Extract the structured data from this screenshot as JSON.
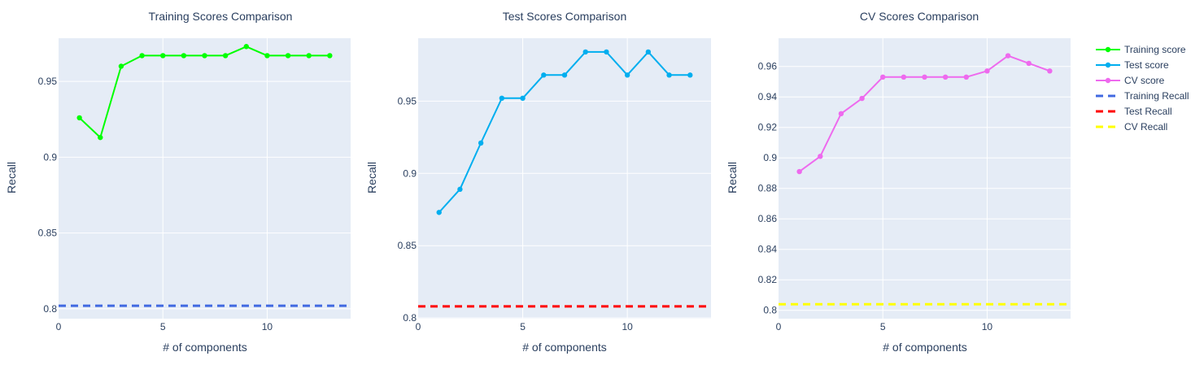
{
  "chart_data": [
    {
      "type": "line",
      "title": "Training Scores Comparison",
      "xlabel": "# of components",
      "ylabel": "Recall",
      "xlim": [
        0,
        14
      ],
      "ylim": [
        0.7935,
        0.9785
      ],
      "x_ticks": [
        0,
        5,
        10
      ],
      "x_tick_labels": [
        "0",
        "5",
        "10"
      ],
      "y_ticks": [
        0.8,
        0.85,
        0.9,
        0.95
      ],
      "y_tick_labels": [
        "0.8",
        "0.85",
        "0.9",
        "0.95"
      ],
      "grid": true,
      "series": [
        {
          "name": "Training score",
          "kind": "line+markers",
          "color": "#00ff00",
          "x": [
            1,
            2,
            3,
            4,
            5,
            6,
            7,
            8,
            9,
            10,
            11,
            12,
            13
          ],
          "y": [
            0.926,
            0.913,
            0.96,
            0.967,
            0.967,
            0.967,
            0.967,
            0.967,
            0.973,
            0.967,
            0.967,
            0.967,
            0.967
          ]
        },
        {
          "name": "Training Recall",
          "kind": "hline-dashed",
          "color": "#4169e1",
          "y": 0.802
        }
      ]
    },
    {
      "type": "line",
      "title": "Test Scores Comparison",
      "xlabel": "# of components",
      "ylabel": "Recall",
      "xlim": [
        0,
        14
      ],
      "ylim": [
        0.7995,
        0.9935
      ],
      "x_ticks": [
        0,
        5,
        10
      ],
      "x_tick_labels": [
        "0",
        "5",
        "10"
      ],
      "y_ticks": [
        0.8,
        0.85,
        0.9,
        0.95
      ],
      "y_tick_labels": [
        "0.8",
        "0.85",
        "0.9",
        "0.95"
      ],
      "grid": true,
      "series": [
        {
          "name": "Test score",
          "kind": "line+markers",
          "color": "#00aeef",
          "x": [
            1,
            2,
            3,
            4,
            5,
            6,
            7,
            8,
            9,
            10,
            11,
            12,
            13
          ],
          "y": [
            0.873,
            0.889,
            0.921,
            0.952,
            0.952,
            0.968,
            0.968,
            0.984,
            0.984,
            0.968,
            0.984,
            0.968,
            0.968
          ]
        },
        {
          "name": "Test Recall",
          "kind": "hline-dashed",
          "color": "#ff0000",
          "y": 0.808
        }
      ]
    },
    {
      "type": "line",
      "title": "CV Scores Comparison",
      "xlabel": "# of components",
      "ylabel": "Recall",
      "xlim": [
        0,
        14
      ],
      "ylim": [
        0.7945,
        0.9785
      ],
      "x_ticks": [
        0,
        5,
        10
      ],
      "x_tick_labels": [
        "0",
        "5",
        "10"
      ],
      "y_ticks": [
        0.8,
        0.82,
        0.84,
        0.86,
        0.88,
        0.9,
        0.92,
        0.94,
        0.96
      ],
      "y_tick_labels": [
        "0.8",
        "0.82",
        "0.84",
        "0.86",
        "0.88",
        "0.9",
        "0.92",
        "0.94",
        "0.96"
      ],
      "grid": true,
      "series": [
        {
          "name": "CV score",
          "kind": "line+markers",
          "color": "#ee6aee",
          "x": [
            1,
            2,
            3,
            4,
            5,
            6,
            7,
            8,
            9,
            10,
            11,
            12,
            13
          ],
          "y": [
            0.891,
            0.901,
            0.929,
            0.939,
            0.953,
            0.953,
            0.953,
            0.953,
            0.953,
            0.957,
            0.967,
            0.962,
            0.957
          ]
        },
        {
          "name": "CV Recall",
          "kind": "hline-dashed",
          "color": "#ffff00",
          "y": 0.804
        }
      ]
    }
  ],
  "legend": {
    "placement": "top-right",
    "items": [
      {
        "label": "Training score",
        "style": "line+markers",
        "color": "#00ff00"
      },
      {
        "label": "Test score",
        "style": "line+markers",
        "color": "#00aeef"
      },
      {
        "label": "CV score",
        "style": "line+markers",
        "color": "#ee6aee"
      },
      {
        "label": "Training Recall",
        "style": "dashed",
        "color": "#4169e1"
      },
      {
        "label": "Test Recall",
        "style": "dashed",
        "color": "#ff0000"
      },
      {
        "label": "CV Recall",
        "style": "dashed",
        "color": "#ffff00"
      }
    ]
  }
}
